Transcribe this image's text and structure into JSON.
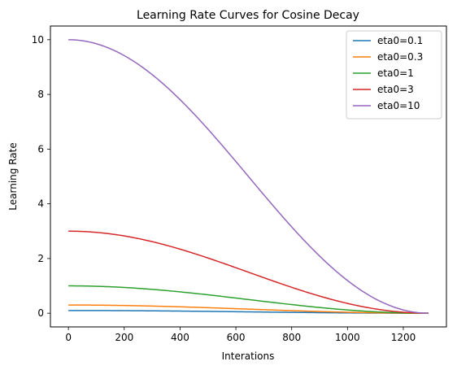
{
  "chart_data": {
    "type": "line",
    "title": "Learning Rate Curves for Cosine Decay",
    "xlabel": "Interations",
    "ylabel": "Learning Rate",
    "xlim": [
      -64.5,
      1354.5
    ],
    "ylim": [
      -0.5,
      10.5
    ],
    "xticks": [
      0,
      200,
      400,
      600,
      800,
      1000,
      1200
    ],
    "yticks": [
      0,
      2,
      4,
      6,
      8,
      10
    ],
    "grid": false,
    "legend_position": "top-right",
    "x_max_iteration": 1290,
    "series": [
      {
        "name": "eta0=0.1",
        "peak": 0.1,
        "color": "#1f77b4",
        "x": [
          0,
          100,
          200,
          300,
          400,
          500,
          600,
          700,
          800,
          900,
          1000,
          1100,
          1200,
          1290
        ],
        "values": [
          0.1,
          0.099,
          0.094,
          0.087,
          0.077,
          0.066,
          0.054,
          0.042,
          0.031,
          0.021,
          0.012,
          0.005,
          0.001,
          0.0
        ]
      },
      {
        "name": "eta0=0.3",
        "peak": 0.3,
        "color": "#ff7f0e",
        "x": [
          0,
          100,
          200,
          300,
          400,
          500,
          600,
          700,
          800,
          900,
          1000,
          1100,
          1200,
          1290
        ],
        "values": [
          0.3,
          0.296,
          0.283,
          0.261,
          0.232,
          0.198,
          0.162,
          0.126,
          0.092,
          0.062,
          0.036,
          0.016,
          0.004,
          0.0
        ]
      },
      {
        "name": "eta0=1",
        "peak": 1,
        "color": "#2ca02c",
        "x": [
          0,
          100,
          200,
          300,
          400,
          500,
          600,
          700,
          800,
          900,
          1000,
          1100,
          1200,
          1290
        ],
        "values": [
          1.0,
          0.985,
          0.942,
          0.871,
          0.775,
          0.66,
          0.542,
          0.42,
          0.305,
          0.204,
          0.12,
          0.053,
          0.015,
          0.0
        ]
      },
      {
        "name": "eta0=3",
        "peak": 3,
        "color": "#d62728",
        "x": [
          0,
          100,
          200,
          300,
          400,
          500,
          600,
          700,
          800,
          900,
          1000,
          1100,
          1200,
          1290
        ],
        "values": [
          3.0,
          2.955,
          2.825,
          2.614,
          2.326,
          1.98,
          1.626,
          1.26,
          0.915,
          0.612,
          0.36,
          0.16,
          0.045,
          0.0
        ]
      },
      {
        "name": "eta0=10",
        "peak": 10,
        "color": "#9467bd",
        "x": [
          0,
          100,
          200,
          300,
          400,
          500,
          600,
          700,
          800,
          900,
          1000,
          1100,
          1200,
          1290
        ],
        "values": [
          10.0,
          9.85,
          9.42,
          8.71,
          7.75,
          6.6,
          5.42,
          4.2,
          3.05,
          2.04,
          1.2,
          0.53,
          0.15,
          0.0
        ]
      }
    ]
  }
}
